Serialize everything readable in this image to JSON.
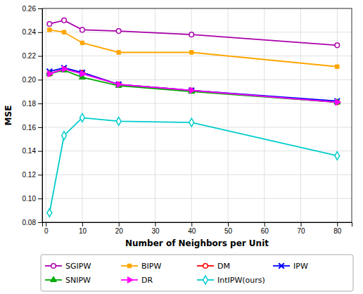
{
  "chart_data": {
    "type": "line",
    "xlabel": "Number of Neighbors per Unit",
    "ylabel": "MSE",
    "x": [
      1,
      5,
      10,
      20,
      40,
      80
    ],
    "series": [
      {
        "name": "SGIPW",
        "color": "#aa00aa",
        "marker": "circle-open",
        "values": [
          0.247,
          0.25,
          0.242,
          0.241,
          0.238,
          0.229
        ]
      },
      {
        "name": "BIPW",
        "color": "#ffa500",
        "marker": "square",
        "values": [
          0.242,
          0.24,
          0.231,
          0.223,
          0.223,
          0.211
        ]
      },
      {
        "name": "DM",
        "color": "#ff0000",
        "marker": "circle-open",
        "values": [
          0.205,
          0.209,
          0.206,
          0.196,
          0.191,
          0.181
        ]
      },
      {
        "name": "IPW",
        "color": "#0000ff",
        "marker": "x",
        "values": [
          0.207,
          0.21,
          0.206,
          0.196,
          0.191,
          0.182
        ]
      },
      {
        "name": "SNIPW",
        "color": "#00aa00",
        "marker": "triangle-up",
        "values": [
          0.205,
          0.208,
          0.202,
          0.195,
          0.19,
          0.181
        ]
      },
      {
        "name": "DR",
        "color": "#ff00ff",
        "marker": "triangle-right",
        "values": [
          0.205,
          0.209,
          0.205,
          0.196,
          0.191,
          0.181
        ]
      },
      {
        "name": "IntIPW(ours)",
        "color": "#00cccc",
        "marker": "diamond-open",
        "values": [
          0.088,
          0.153,
          0.168,
          0.165,
          0.164,
          0.136
        ]
      }
    ],
    "xlim": [
      -1,
      84
    ],
    "xticks": [
      0,
      10,
      20,
      30,
      40,
      50,
      60,
      70,
      80
    ],
    "ylim": [
      0.08,
      0.26
    ],
    "yticks": [
      0.08,
      {
        "value": 0.1,
        "label": "0.10"
      },
      0.12,
      0.14,
      0.16,
      0.18,
      {
        "value": 0.2,
        "label": "0.20"
      },
      0.22,
      0.24,
      0.26
    ],
    "grid": true,
    "legend": "bottom"
  }
}
